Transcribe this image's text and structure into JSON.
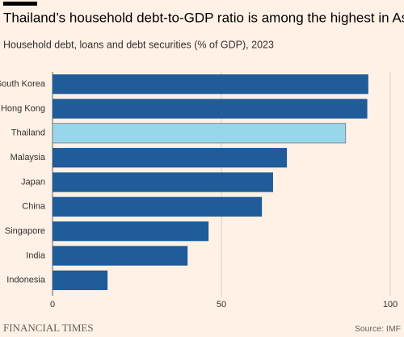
{
  "chart_data": {
    "type": "barh",
    "title": "Thailand’s household debt-to-GDP ratio is among the highest in Asia",
    "subtitle": "Household debt, loans and debt securities (% of GDP), 2023",
    "categories": [
      "South Korea",
      "Hong Kong",
      "Thailand",
      "Malaysia",
      "Japan",
      "China",
      "Singapore",
      "India",
      "Indonesia"
    ],
    "values": [
      93.5,
      93.2,
      86.8,
      69.4,
      65.3,
      62,
      46.2,
      40,
      16.3
    ],
    "colors": [
      "#1f5c99",
      "#1f5c99",
      "#98d6ea",
      "#1f5c99",
      "#1f5c99",
      "#1f5c99",
      "#1f5c99",
      "#1f5c99",
      "#1f5c99"
    ],
    "xlim": [
      0,
      100
    ],
    "xticks": [
      0,
      50,
      100
    ],
    "grid": true,
    "source": "Source: IMF",
    "brand": "FINANCIAL TIMES"
  }
}
